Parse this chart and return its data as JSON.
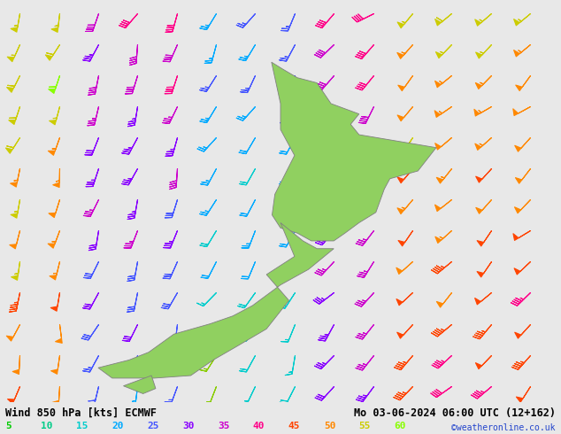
{
  "title_left": "Wind 850 hPa [kts] ECMWF",
  "title_right": "Mo 03-06-2024 06:00 UTC (12+162)",
  "credit": "©weatheronline.co.uk",
  "background_color": "#e8e8e8",
  "land_color": "#90d060",
  "land_edge_color": "#808080",
  "fig_width": 6.34,
  "fig_height": 4.9,
  "dpi": 100,
  "map_extent": [
    163,
    183,
    -47.5,
    -32.0
  ],
  "legend_values": [
    5,
    10,
    15,
    20,
    25,
    30,
    35,
    40,
    45,
    50,
    55,
    60
  ],
  "legend_colors": [
    "#00cc00",
    "#88cc00",
    "#00cccc",
    "#00aaff",
    "#4455ff",
    "#8800ff",
    "#cc00cc",
    "#ff0088",
    "#ff4400",
    "#ff8800",
    "#cccc00",
    "#88ff00"
  ],
  "speed_thresholds": [
    5,
    10,
    15,
    20,
    25,
    30,
    35,
    40,
    45,
    50,
    55,
    60
  ],
  "speed_colors": [
    "#00cc00",
    "#88cc00",
    "#00cccc",
    "#00aaff",
    "#4455ff",
    "#8800ff",
    "#cc00cc",
    "#ff0088",
    "#ff4400",
    "#ff8800",
    "#cccc00",
    "#88ff00"
  ]
}
